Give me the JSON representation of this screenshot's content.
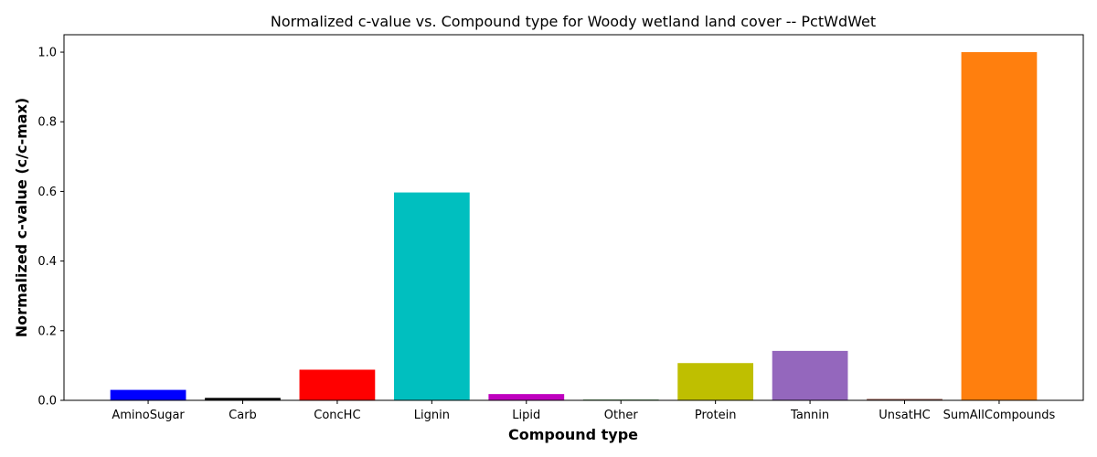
{
  "chart_data": {
    "type": "bar",
    "title": "Normalized c-value vs. Compound type for Woody wetland land cover -- PctWdWet",
    "xlabel": "Compound type",
    "ylabel": "Normalized c-value (c/c-max)",
    "categories": [
      "AminoSugar",
      "Carb",
      "ConcHC",
      "Lignin",
      "Lipid",
      "Other",
      "Protein",
      "Tannin",
      "UnsatHC",
      "SumAllCompounds"
    ],
    "values": [
      0.03,
      0.007,
      0.088,
      0.597,
      0.018,
      0.002,
      0.107,
      0.142,
      0.004,
      1.0
    ],
    "colors": [
      "#0000ff",
      "#000000",
      "#ff0000",
      "#00bfbf",
      "#bf00bf",
      "#006400",
      "#bfbf00",
      "#9467bd",
      "#8c564b",
      "#ff7f0e"
    ],
    "ylim": [
      0,
      1.05
    ],
    "yticks": [
      0.0,
      0.2,
      0.4,
      0.6,
      0.8,
      1.0
    ],
    "ytick_labels": [
      "0.0",
      "0.2",
      "0.4",
      "0.6",
      "0.8",
      "1.0"
    ],
    "grid": false,
    "legend": "none"
  }
}
